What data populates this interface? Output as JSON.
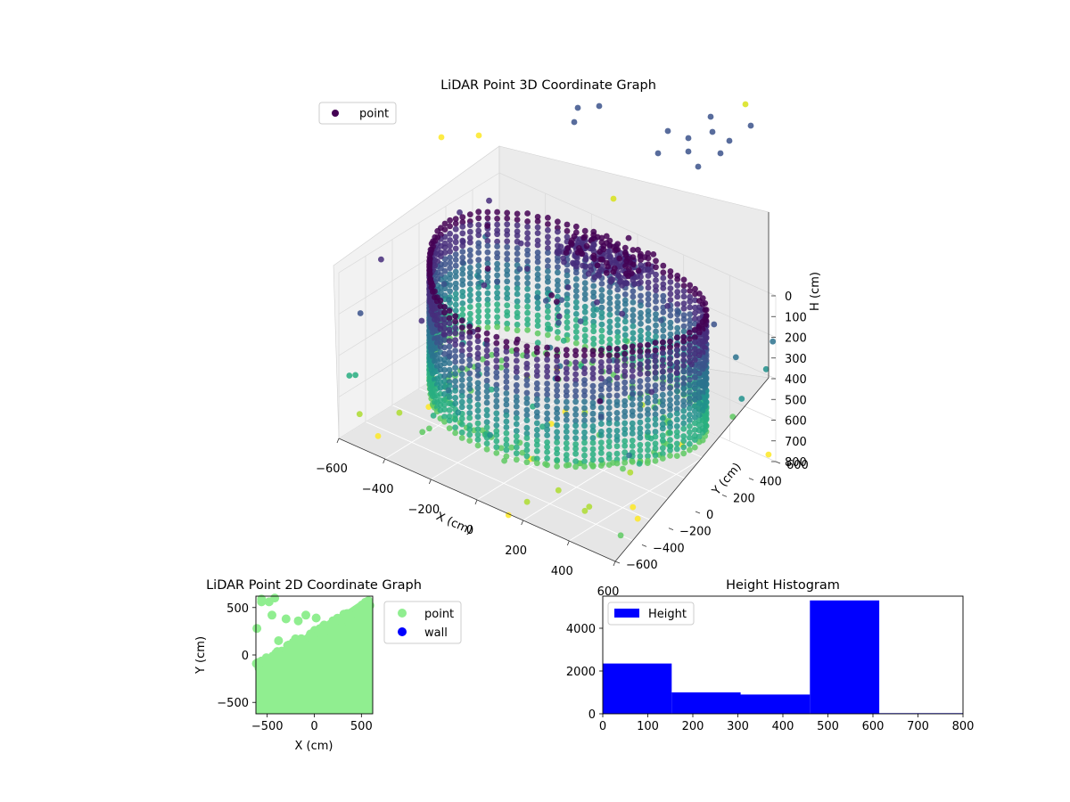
{
  "figure": {
    "charts": [
      {
        "id": "lidar-3d",
        "title": "LiDAR Point 3D Coordinate Graph",
        "xlabel": "X (cm)",
        "ylabel": "Y (cm)",
        "zlabel": "H (cm)",
        "legend": "point"
      },
      {
        "id": "lidar-2d",
        "title": "LiDAR Point 2D Coordinate Graph",
        "xlabel": "X (cm)",
        "ylabel": "Y (cm)",
        "legend": [
          "point",
          "wall"
        ]
      },
      {
        "id": "height-hist",
        "title": "Height Histogram",
        "legend": "Height"
      }
    ]
  },
  "chart_data": [
    {
      "type": "scatter",
      "title": "LiDAR Point 3D Coordinate Graph",
      "xlabel": "X (cm)",
      "ylabel": "Y (cm)",
      "zlabel": "H (cm)",
      "xlim": [
        -620,
        620
      ],
      "ylim": [
        -620,
        620
      ],
      "zlim": [
        800,
        0
      ],
      "x_ticks": [
        "−600",
        "−400",
        "−200",
        "0",
        "200",
        "400",
        "600"
      ],
      "y_ticks": [
        "−600",
        "−400",
        "−200",
        "0",
        "200",
        "400",
        "600"
      ],
      "z_ticks": [
        "0",
        "100",
        "200",
        "300",
        "400",
        "500",
        "600",
        "700",
        "800"
      ],
      "colormap": "viridis",
      "grid": true,
      "legend_position": "top-left",
      "series": [
        {
          "name": "point",
          "color": "#440154"
        }
      ]
    },
    {
      "type": "scatter",
      "title": "LiDAR Point 2D Coordinate Graph",
      "xlabel": "X (cm)",
      "ylabel": "Y (cm)",
      "xlim": [
        -620,
        620
      ],
      "ylim": [
        -620,
        620
      ],
      "x_ticks": [
        -500,
        0,
        500
      ],
      "y_ticks": [
        -500,
        0,
        500
      ],
      "legend_position": "outside-right",
      "series": [
        {
          "name": "point",
          "color": "#90ee90"
        },
        {
          "name": "wall",
          "color": "#0000ff"
        }
      ]
    },
    {
      "type": "bar",
      "title": "Height Histogram",
      "xlim": [
        0,
        800
      ],
      "ylim": [
        0,
        5500
      ],
      "x_ticks": [
        0,
        100,
        200,
        300,
        400,
        500,
        600,
        700,
        800
      ],
      "y_ticks": [
        0,
        2000,
        4000
      ],
      "bin_edges": [
        0,
        153,
        306,
        460,
        614,
        800
      ],
      "values": [
        2350,
        1000,
        900,
        5300,
        30
      ],
      "legend_position": "top-left",
      "series": [
        {
          "name": "Height",
          "color": "#0000ff"
        }
      ]
    }
  ]
}
